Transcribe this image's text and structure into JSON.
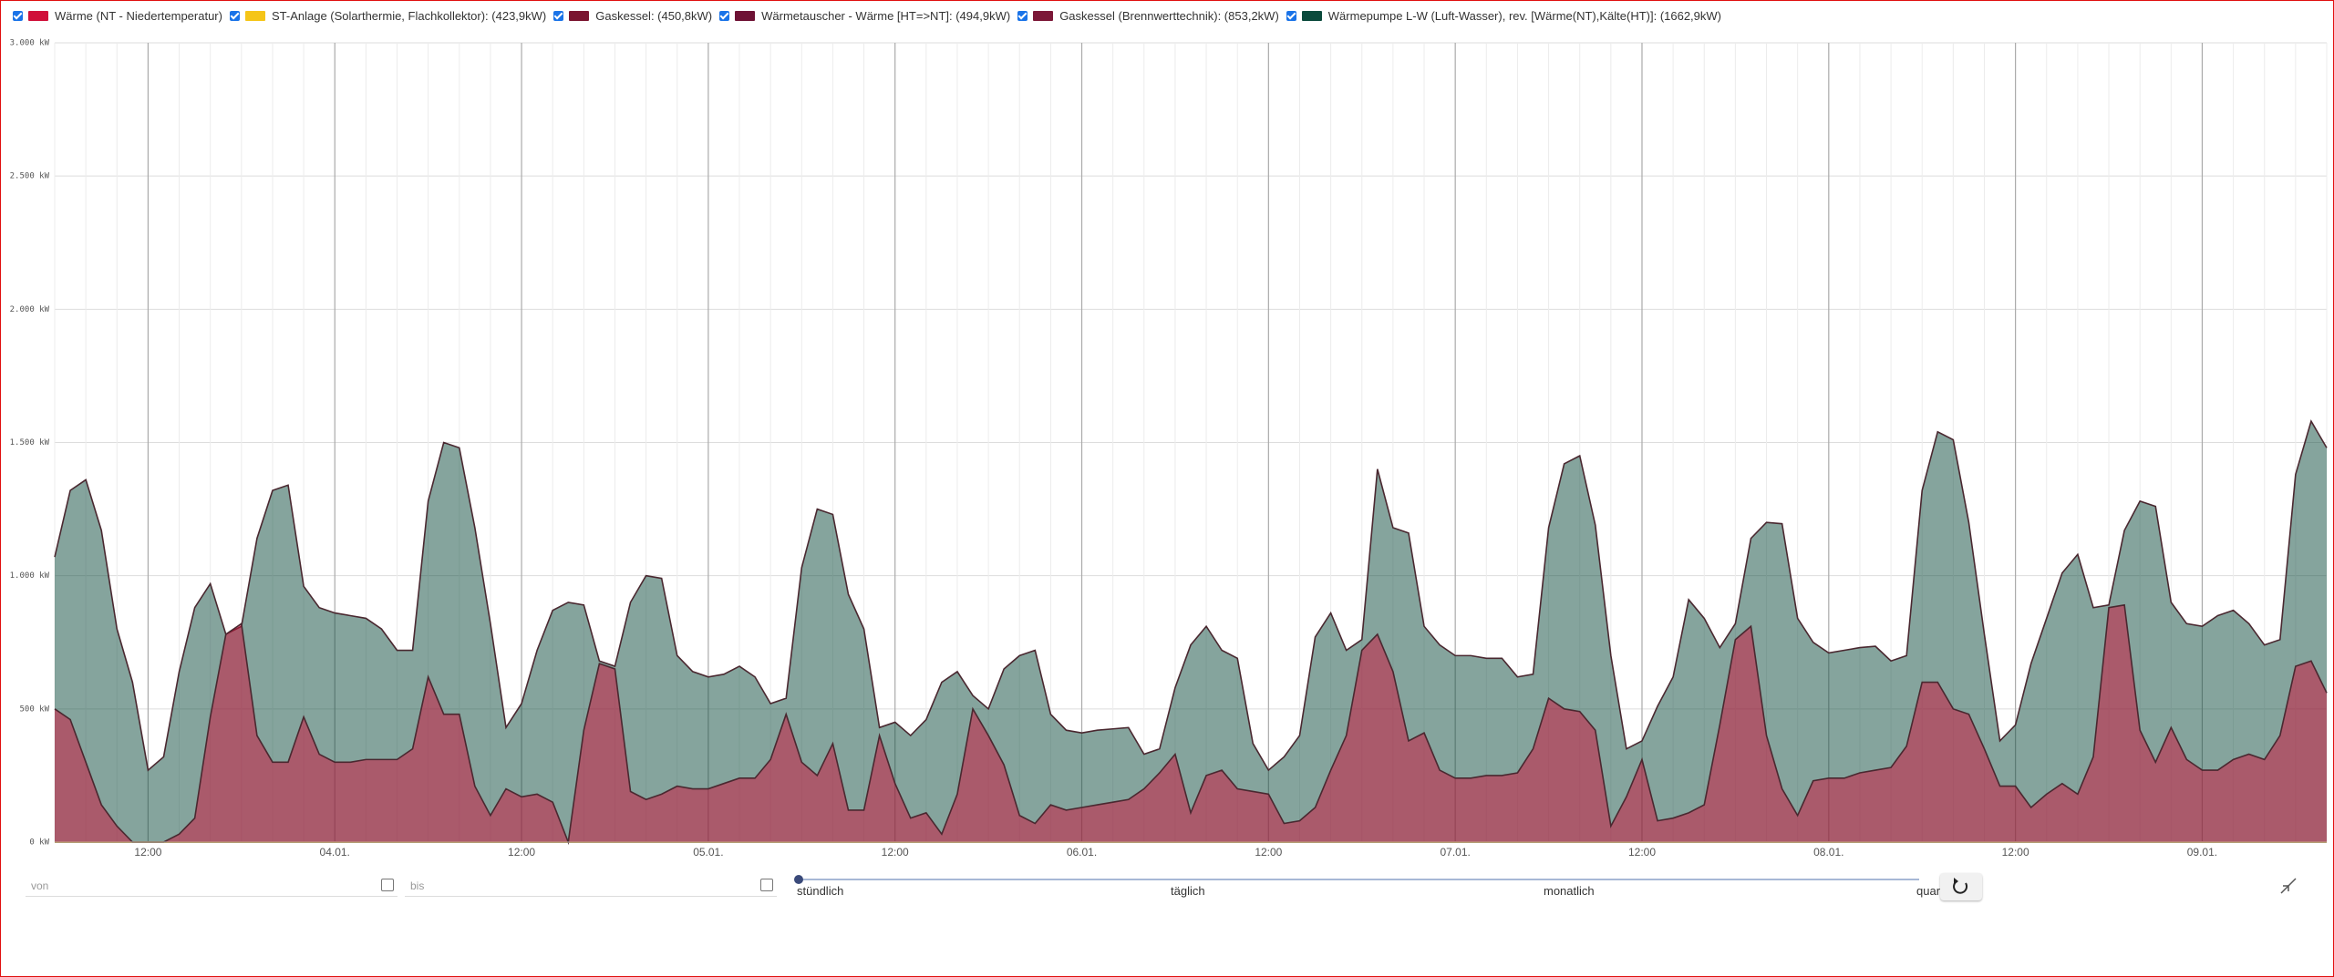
{
  "chart_data": {
    "type": "area",
    "categories": [
      null,
      null,
      null,
      null,
      null,
      null,
      "12:00",
      null,
      null,
      null,
      null,
      null,
      null,
      null,
      null,
      null,
      null,
      null,
      "04.01.",
      null,
      null,
      null,
      null,
      null,
      null,
      null,
      null,
      null,
      null,
      null,
      "12:00",
      null,
      null,
      null,
      null,
      null,
      null,
      null,
      null,
      null,
      null,
      null,
      "05.01.",
      null,
      null,
      null,
      null,
      null,
      null,
      null,
      null,
      null,
      null,
      null,
      "12:00",
      null,
      null,
      null,
      null,
      null,
      null,
      null,
      null,
      null,
      null,
      null,
      "06.01.",
      null,
      null,
      null,
      null,
      null,
      null,
      null,
      null,
      null,
      null,
      null,
      "12:00",
      null,
      null,
      null,
      null,
      null,
      null,
      null,
      null,
      null,
      null,
      null,
      "07.01.",
      null,
      null,
      null,
      null,
      null,
      null,
      null,
      null,
      null,
      null,
      null,
      "12:00",
      null,
      null,
      null,
      null,
      null,
      null,
      null,
      null,
      null,
      null,
      null,
      "08.01.",
      null,
      null,
      null,
      null,
      null,
      null,
      null,
      null,
      null,
      null,
      null,
      "12:00",
      null,
      null,
      null,
      null,
      null,
      null,
      null,
      null,
      null,
      null,
      null,
      "09.01.",
      null,
      null,
      null,
      null,
      null,
      null,
      null,
      null
    ],
    "series": [
      {
        "name": "Wärme (NT - Niedertemperatur)",
        "color": "#d0103a",
        "values": [
          500,
          460,
          300,
          140,
          60,
          0,
          0,
          0,
          30,
          90,
          470,
          780,
          820,
          400,
          300,
          300,
          470,
          330,
          300,
          300,
          310,
          310,
          310,
          350,
          620,
          480,
          480,
          210,
          100,
          200,
          170,
          180,
          150,
          0,
          420,
          670,
          650,
          190,
          160,
          180,
          210,
          200,
          200,
          220,
          240,
          240,
          310,
          480,
          300,
          250,
          370,
          120,
          120,
          400,
          220,
          90,
          110,
          30,
          180,
          500,
          400,
          290,
          100,
          70,
          140,
          120,
          130,
          140,
          150,
          160,
          200,
          260,
          330,
          110,
          250,
          270,
          200,
          190,
          180,
          70,
          80,
          130,
          270,
          400,
          720,
          780,
          640,
          380,
          410,
          270,
          240,
          240,
          250,
          250,
          260,
          350,
          540,
          500,
          490,
          420,
          60,
          170,
          310,
          80,
          90,
          110,
          140,
          440,
          760,
          810,
          400,
          200,
          100,
          230,
          240,
          240,
          260,
          270,
          280,
          360,
          600,
          600,
          500,
          480,
          350,
          210,
          210,
          130,
          180,
          220,
          180,
          320,
          880,
          890,
          420,
          300,
          430,
          310,
          270,
          270,
          310,
          330,
          310,
          400,
          660,
          680,
          560
        ]
      },
      {
        "name": "ST-Anlage (Solarthermie, Flachkollektor): (423,9kW)",
        "color": "#f5c518",
        "values": [
          0,
          0,
          0,
          0,
          0,
          0,
          0,
          0,
          0,
          0,
          0,
          0,
          0,
          0,
          0,
          0,
          0,
          0,
          0,
          0,
          0,
          0,
          0,
          0,
          0,
          0,
          0,
          0,
          0,
          0,
          0,
          0,
          0,
          0,
          0,
          0,
          0,
          0,
          0,
          0,
          0,
          0,
          0,
          0,
          0,
          0,
          0,
          0,
          0,
          0,
          0,
          0,
          0,
          0,
          0,
          0,
          0,
          0,
          0,
          0,
          0,
          0,
          0,
          0,
          0,
          0,
          0,
          0,
          0,
          0,
          0,
          0,
          0,
          0,
          0,
          0,
          0,
          0,
          0,
          0,
          0,
          0,
          0,
          0,
          0,
          0,
          0,
          0,
          0,
          0,
          0,
          0,
          0,
          0,
          0,
          0,
          0,
          0,
          0,
          0,
          0,
          0,
          0,
          0,
          0,
          0,
          0,
          0,
          0,
          0,
          0,
          0,
          0,
          0,
          0,
          0,
          0,
          0,
          0,
          0,
          0,
          0,
          0,
          0,
          0,
          0,
          0,
          0,
          0,
          0,
          0,
          0,
          0,
          0,
          0,
          0,
          0,
          0,
          0,
          0,
          0,
          0,
          0,
          0,
          0,
          0,
          0
        ]
      },
      {
        "name": "Gaskessel: (450,8kW)",
        "color": "#7a1530",
        "values": [
          0,
          0,
          0,
          0,
          0,
          0,
          0,
          0,
          0,
          0,
          0,
          0,
          0,
          0,
          0,
          0,
          0,
          0,
          0,
          0,
          0,
          0,
          0,
          0,
          0,
          0,
          0,
          0,
          0,
          0,
          0,
          0,
          0,
          0,
          0,
          0,
          0,
          0,
          0,
          0,
          0,
          0,
          0,
          0,
          0,
          0,
          0,
          0,
          0,
          0,
          0,
          0,
          0,
          0,
          0,
          0,
          0,
          0,
          0,
          0,
          0,
          0,
          0,
          0,
          0,
          0,
          0,
          0,
          0,
          0,
          0,
          0,
          0,
          0,
          0,
          0,
          0,
          0,
          0,
          0,
          0,
          0,
          0,
          0,
          0,
          0,
          0,
          0,
          0,
          0,
          0,
          0,
          0,
          0,
          0,
          0,
          0,
          0,
          0,
          0,
          0,
          0,
          0,
          0,
          0,
          0,
          0,
          0,
          0,
          0,
          0,
          0,
          0,
          0,
          0,
          0,
          0,
          0,
          0,
          0,
          0,
          0,
          0,
          0,
          0,
          0,
          0,
          0,
          0,
          0,
          0,
          0,
          0,
          0,
          0,
          0,
          0,
          0,
          0,
          0,
          0,
          0,
          0,
          0,
          0,
          0,
          0
        ]
      },
      {
        "name": "Wärmetauscher - Wärme [HT=>NT]: (494,9kW)",
        "color": "#6e1235",
        "values": [
          0,
          0,
          0,
          0,
          0,
          0,
          0,
          0,
          0,
          0,
          0,
          0,
          0,
          0,
          0,
          0,
          0,
          0,
          0,
          0,
          0,
          0,
          0,
          0,
          0,
          0,
          0,
          0,
          0,
          0,
          0,
          0,
          0,
          0,
          0,
          0,
          0,
          0,
          0,
          0,
          0,
          0,
          0,
          0,
          0,
          0,
          0,
          0,
          0,
          0,
          0,
          0,
          0,
          0,
          0,
          0,
          0,
          0,
          0,
          0,
          0,
          0,
          0,
          0,
          0,
          0,
          0,
          0,
          0,
          0,
          0,
          0,
          0,
          0,
          0,
          0,
          0,
          0,
          0,
          0,
          0,
          0,
          0,
          0,
          0,
          0,
          0,
          0,
          0,
          0,
          0,
          0,
          0,
          0,
          0,
          0,
          0,
          0,
          0,
          0,
          0,
          0,
          0,
          0,
          0,
          0,
          0,
          0,
          0,
          0,
          0,
          0,
          0,
          0,
          0,
          0,
          0,
          0,
          0,
          0,
          0,
          0,
          0,
          0,
          0,
          0,
          0,
          0,
          0,
          0,
          0,
          0,
          0,
          0,
          0,
          0,
          0,
          0,
          0,
          0,
          0,
          0,
          0,
          0,
          0,
          0,
          0
        ]
      },
      {
        "name": "Gaskessel (Brennwerttechnik): (853,2kW)",
        "color": "#7c1838",
        "values": [
          0,
          0,
          0,
          0,
          0,
          0,
          0,
          0,
          0,
          0,
          0,
          0,
          0,
          0,
          0,
          0,
          0,
          0,
          0,
          0,
          0,
          0,
          0,
          0,
          0,
          0,
          0,
          0,
          0,
          0,
          0,
          0,
          0,
          0,
          0,
          0,
          0,
          0,
          0,
          0,
          0,
          0,
          0,
          0,
          0,
          0,
          0,
          0,
          0,
          0,
          0,
          0,
          0,
          0,
          0,
          0,
          0,
          0,
          0,
          0,
          0,
          0,
          0,
          0,
          0,
          0,
          0,
          0,
          0,
          0,
          0,
          0,
          0,
          0,
          0,
          0,
          0,
          0,
          0,
          0,
          0,
          0,
          0,
          0,
          0,
          0,
          0,
          0,
          0,
          0,
          0,
          0,
          0,
          0,
          0,
          0,
          0,
          0,
          0,
          0,
          0,
          0,
          0,
          0,
          0,
          0,
          0,
          0,
          0,
          0,
          0,
          0,
          0,
          0,
          0,
          0,
          0,
          0,
          0,
          0,
          0,
          0,
          0,
          0,
          0,
          0,
          0,
          0,
          0,
          0,
          0,
          0,
          0,
          0,
          0,
          0,
          0,
          0,
          0,
          0,
          0,
          0,
          0,
          0,
          0,
          0,
          0
        ]
      },
      {
        "name": "Wärmepumpe L-W (Luft-Wasser), rev. [Wärme(NT),Kälte(HT)]: (1662,9kW)",
        "color": "#0b4a3c",
        "values": [
          1070,
          1320,
          1360,
          1170,
          800,
          600,
          270,
          320,
          640,
          880,
          970,
          780,
          810,
          1140,
          1320,
          1340,
          960,
          880,
          860,
          850,
          840,
          800,
          720,
          720,
          1280,
          1500,
          1480,
          1180,
          820,
          430,
          520,
          720,
          870,
          900,
          890,
          680,
          660,
          900,
          1000,
          990,
          700,
          640,
          620,
          630,
          660,
          620,
          520,
          540,
          1030,
          1250,
          1230,
          930,
          800,
          430,
          450,
          400,
          460,
          600,
          640,
          550,
          500,
          650,
          700,
          720,
          480,
          420,
          410,
          420,
          425,
          430,
          330,
          350,
          580,
          740,
          810,
          720,
          690,
          370,
          270,
          320,
          400,
          770,
          860,
          720,
          760,
          1400,
          1180,
          1160,
          810,
          740,
          700,
          700,
          690,
          690,
          620,
          630,
          1180,
          1420,
          1450,
          1190,
          700,
          350,
          380,
          510,
          620,
          910,
          840,
          730,
          820,
          1140,
          1200,
          1195,
          840,
          750,
          710,
          720,
          730,
          735,
          680,
          700,
          1320,
          1540,
          1510,
          1200,
          780,
          380,
          440,
          670,
          840,
          1010,
          1080,
          880,
          890,
          1170,
          1280,
          1260,
          900,
          820,
          810,
          850,
          870,
          820,
          740,
          760,
          1380,
          1580,
          1480
        ]
      }
    ],
    "ylim": [
      0,
      3000
    ],
    "yticks": [
      {
        "value": 0,
        "label": "0 kW"
      },
      {
        "value": 500,
        "label": "500 kW"
      },
      {
        "value": 1000,
        "label": "1.000 kW"
      },
      {
        "value": 1500,
        "label": "1.500 kW"
      },
      {
        "value": 2000,
        "label": "2.000 kW"
      },
      {
        "value": 2500,
        "label": "2.500 kW"
      },
      {
        "value": 3000,
        "label": "3.000 kW"
      }
    ],
    "grid": true
  },
  "controls": {
    "from_placeholder": "von",
    "to_placeholder": "bis",
    "granularity": [
      "stündlich",
      "täglich",
      "monatlich",
      "quar"
    ]
  }
}
